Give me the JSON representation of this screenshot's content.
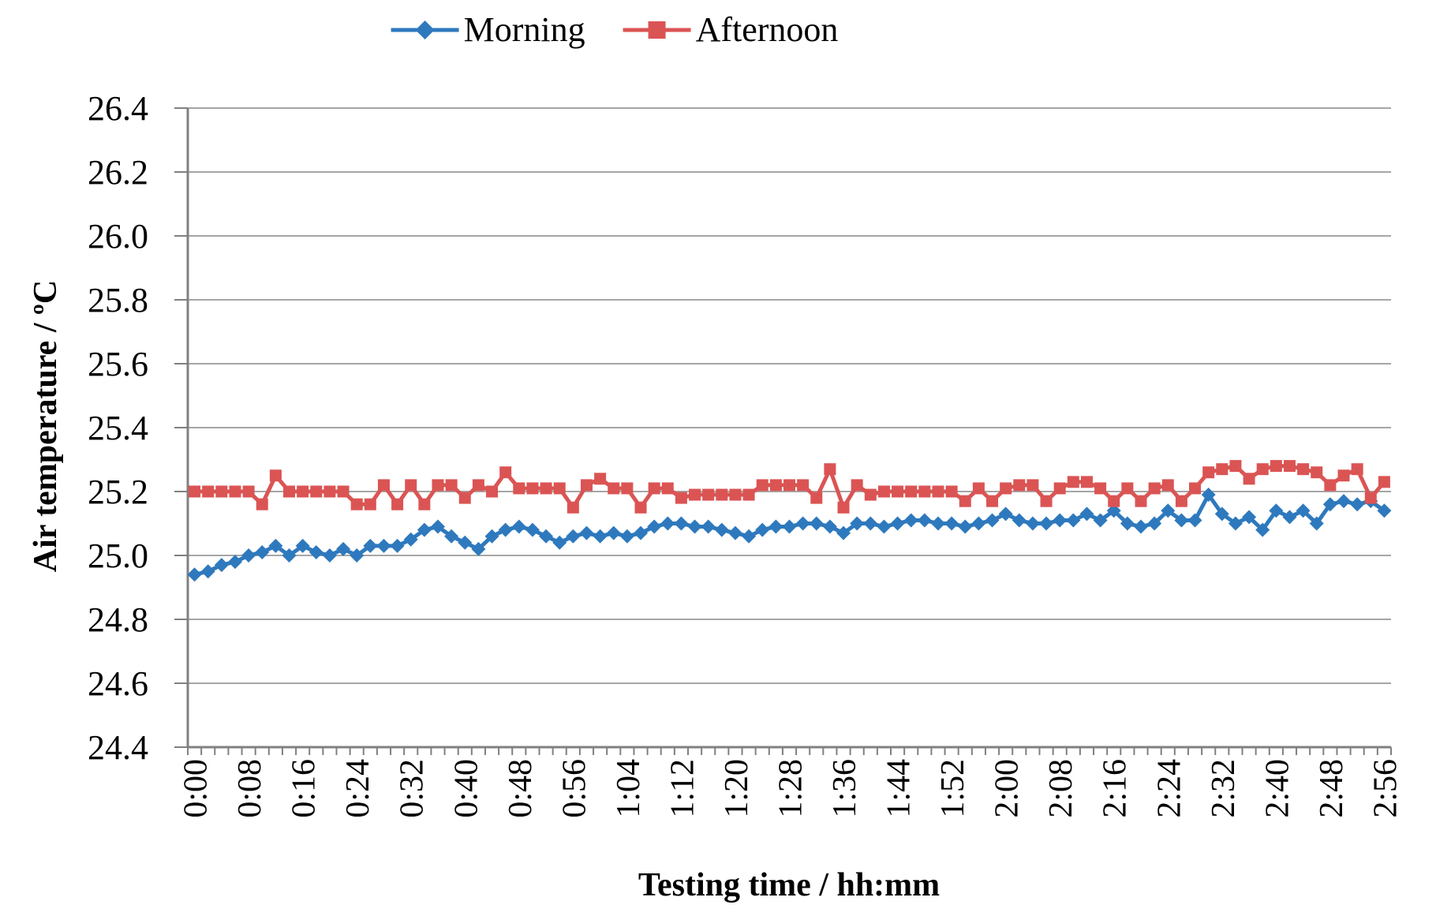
{
  "page": {
    "background": "#ffffff"
  },
  "legend": {
    "position": "top"
  },
  "chart_data": {
    "type": "line",
    "title": "",
    "xlabel": "Testing time / hh:mm",
    "ylabel": "Air temperature / ºC",
    "ylim": [
      24.4,
      26.4
    ],
    "y_tick_step": 0.2,
    "y_tick_labels": [
      "26.4",
      "26.2",
      "26.0",
      "25.8",
      "25.6",
      "25.4",
      "25.2",
      "25.0",
      "24.8",
      "24.6",
      "24.4"
    ],
    "x_tick_label_every": 4,
    "grid": "horizontal",
    "legend_position": "top-center",
    "gridline_color": "#A6A6A6",
    "axis_color": "#808080",
    "text_color": "#000000",
    "categories": [
      "0:00",
      "0:02",
      "0:04",
      "0:06",
      "0:08",
      "0:10",
      "0:12",
      "0:14",
      "0:16",
      "0:18",
      "0:20",
      "0:22",
      "0:24",
      "0:26",
      "0:28",
      "0:30",
      "0:32",
      "0:34",
      "0:36",
      "0:38",
      "0:40",
      "0:42",
      "0:44",
      "0:46",
      "0:48",
      "0:50",
      "0:52",
      "0:54",
      "0:56",
      "0:58",
      "1:00",
      "1:02",
      "1:04",
      "1:06",
      "1:08",
      "1:10",
      "1:12",
      "1:14",
      "1:16",
      "1:18",
      "1:20",
      "1:22",
      "1:24",
      "1:26",
      "1:28",
      "1:30",
      "1:32",
      "1:34",
      "1:36",
      "1:38",
      "1:40",
      "1:42",
      "1:44",
      "1:46",
      "1:48",
      "1:50",
      "1:52",
      "1:54",
      "1:56",
      "1:58",
      "2:00",
      "2:02",
      "2:04",
      "2:06",
      "2:08",
      "2:10",
      "2:12",
      "2:14",
      "2:16",
      "2:18",
      "2:20",
      "2:22",
      "2:24",
      "2:26",
      "2:28",
      "2:30",
      "2:32",
      "2:34",
      "2:36",
      "2:38",
      "2:40",
      "2:42",
      "2:44",
      "2:46",
      "2:48",
      "2:50",
      "2:52",
      "2:54",
      "2:56"
    ],
    "series": [
      {
        "name": "Morning",
        "color": "#2E79BD",
        "marker": "diamond",
        "values": [
          24.94,
          24.95,
          24.97,
          24.98,
          25.0,
          25.01,
          25.03,
          25.0,
          25.03,
          25.01,
          25.0,
          25.02,
          25.0,
          25.03,
          25.03,
          25.03,
          25.05,
          25.08,
          25.09,
          25.06,
          25.04,
          25.02,
          25.06,
          25.08,
          25.09,
          25.08,
          25.06,
          25.04,
          25.06,
          25.07,
          25.06,
          25.07,
          25.06,
          25.07,
          25.09,
          25.1,
          25.1,
          25.09,
          25.09,
          25.08,
          25.07,
          25.06,
          25.08,
          25.09,
          25.09,
          25.1,
          25.1,
          25.09,
          25.07,
          25.1,
          25.1,
          25.09,
          25.1,
          25.11,
          25.11,
          25.1,
          25.1,
          25.09,
          25.1,
          25.11,
          25.13,
          25.11,
          25.1,
          25.1,
          25.11,
          25.11,
          25.13,
          25.11,
          25.14,
          25.1,
          25.09,
          25.1,
          25.14,
          25.11,
          25.11,
          25.19,
          25.13,
          25.1,
          25.12,
          25.08,
          25.14,
          25.12,
          25.14,
          25.1,
          25.16,
          25.17,
          25.16,
          25.17,
          25.14
        ]
      },
      {
        "name": "Afternoon",
        "color": "#DB5454",
        "marker": "square",
        "values": [
          25.2,
          25.2,
          25.2,
          25.2,
          25.2,
          25.16,
          25.25,
          25.2,
          25.2,
          25.2,
          25.2,
          25.2,
          25.16,
          25.16,
          25.22,
          25.16,
          25.22,
          25.16,
          25.22,
          25.22,
          25.18,
          25.22,
          25.2,
          25.26,
          25.21,
          25.21,
          25.21,
          25.21,
          25.15,
          25.22,
          25.24,
          25.21,
          25.21,
          25.15,
          25.21,
          25.21,
          25.18,
          25.19,
          25.19,
          25.19,
          25.19,
          25.19,
          25.22,
          25.22,
          25.22,
          25.22,
          25.18,
          25.27,
          25.15,
          25.22,
          25.19,
          25.2,
          25.2,
          25.2,
          25.2,
          25.2,
          25.2,
          25.17,
          25.21,
          25.17,
          25.21,
          25.22,
          25.22,
          25.17,
          25.21,
          25.23,
          25.23,
          25.21,
          25.17,
          25.21,
          25.17,
          25.21,
          25.22,
          25.17,
          25.21,
          25.26,
          25.27,
          25.28,
          25.24,
          25.27,
          25.28,
          25.28,
          25.27,
          25.26,
          25.22,
          25.25,
          25.27,
          25.18,
          25.23
        ]
      }
    ]
  }
}
